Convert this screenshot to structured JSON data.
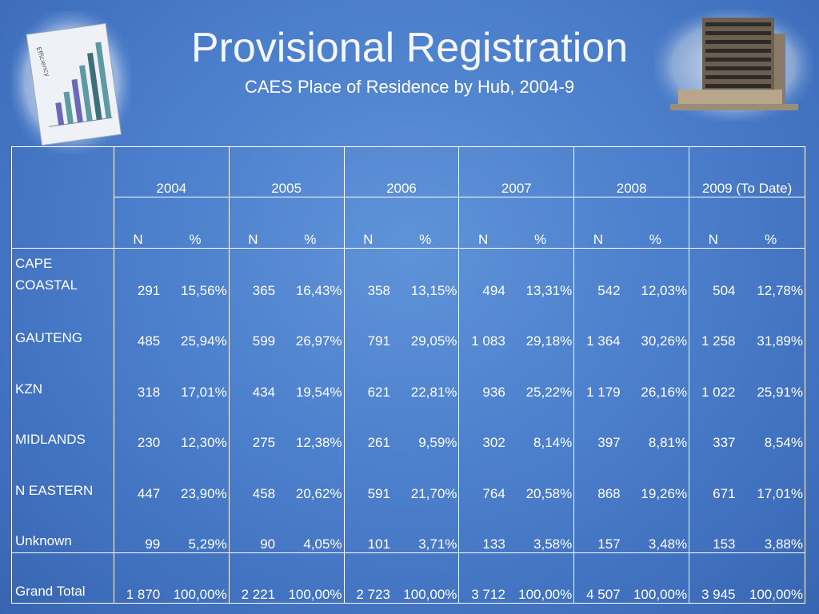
{
  "slide": {
    "title": "Provisional Registration",
    "subtitle": "CAES Place of Residence by Hub, 2004-9"
  },
  "images": {
    "left": "efficiency-bar-chart-photo",
    "right": "office-building-photo"
  },
  "chart_data": {
    "type": "table",
    "years": [
      "2004",
      "2005",
      "2006",
      "2007",
      "2008",
      "2009 (To Date)"
    ],
    "subheaders": [
      "N",
      "%"
    ],
    "rows": [
      {
        "hub": "CAPE COASTAL",
        "cells": [
          [
            "291",
            "15,56%"
          ],
          [
            "365",
            "16,43%"
          ],
          [
            "358",
            "13,15%"
          ],
          [
            "494",
            "13,31%"
          ],
          [
            "542",
            "12,03%"
          ],
          [
            "504",
            "12,78%"
          ]
        ]
      },
      {
        "hub": "GAUTENG",
        "cells": [
          [
            "485",
            "25,94%"
          ],
          [
            "599",
            "26,97%"
          ],
          [
            "791",
            "29,05%"
          ],
          [
            "1 083",
            "29,18%"
          ],
          [
            "1 364",
            "30,26%"
          ],
          [
            "1 258",
            "31,89%"
          ]
        ]
      },
      {
        "hub": "KZN",
        "cells": [
          [
            "318",
            "17,01%"
          ],
          [
            "434",
            "19,54%"
          ],
          [
            "621",
            "22,81%"
          ],
          [
            "936",
            "25,22%"
          ],
          [
            "1 179",
            "26,16%"
          ],
          [
            "1 022",
            "25,91%"
          ]
        ]
      },
      {
        "hub": "MIDLANDS",
        "cells": [
          [
            "230",
            "12,30%"
          ],
          [
            "275",
            "12,38%"
          ],
          [
            "261",
            "9,59%"
          ],
          [
            "302",
            "8,14%"
          ],
          [
            "397",
            "8,81%"
          ],
          [
            "337",
            "8,54%"
          ]
        ]
      },
      {
        "hub": "N EASTERN",
        "cells": [
          [
            "447",
            "23,90%"
          ],
          [
            "458",
            "20,62%"
          ],
          [
            "591",
            "21,70%"
          ],
          [
            "764",
            "20,58%"
          ],
          [
            "868",
            "19,26%"
          ],
          [
            "671",
            "17,01%"
          ]
        ]
      },
      {
        "hub": "Unknown",
        "cells": [
          [
            "99",
            "5,29%"
          ],
          [
            "90",
            "4,05%"
          ],
          [
            "101",
            "3,71%"
          ],
          [
            "133",
            "3,58%"
          ],
          [
            "157",
            "3,48%"
          ],
          [
            "153",
            "3,88%"
          ]
        ]
      }
    ],
    "total": {
      "hub": "Grand Total",
      "cells": [
        [
          "1 870",
          "100,00%"
        ],
        [
          "2 221",
          "100,00%"
        ],
        [
          "2 723",
          "100,00%"
        ],
        [
          "3 712",
          "100,00%"
        ],
        [
          "4 507",
          "100,00%"
        ],
        [
          "3 945",
          "100,00%"
        ]
      ]
    }
  }
}
